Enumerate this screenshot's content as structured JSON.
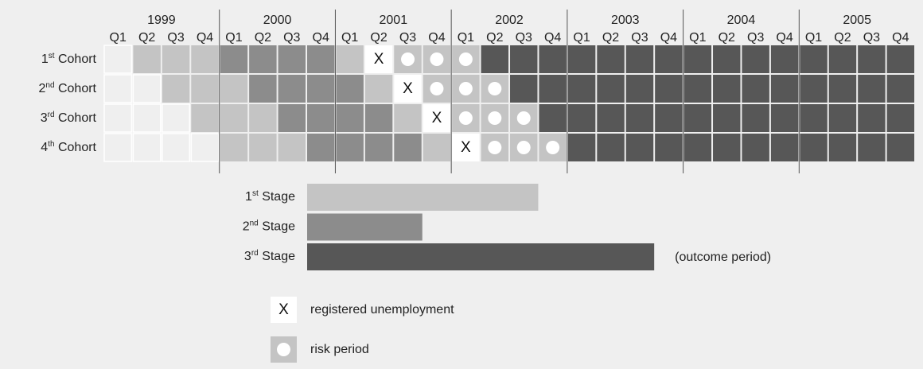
{
  "years": [
    {
      "year": "1999",
      "quarters": [
        "Q1",
        "Q2",
        "Q3",
        "Q4"
      ]
    },
    {
      "year": "2000",
      "quarters": [
        "Q1",
        "Q2",
        "Q3",
        "Q4"
      ]
    },
    {
      "year": "2001",
      "quarters": [
        "Q1",
        "Q2",
        "Q3",
        "Q4"
      ]
    },
    {
      "year": "2002",
      "quarters": [
        "Q1",
        "Q2",
        "Q3",
        "Q4"
      ]
    },
    {
      "year": "2003",
      "quarters": [
        "Q1",
        "Q2",
        "Q3",
        "Q4"
      ]
    },
    {
      "year": "2004",
      "quarters": [
        "Q1",
        "Q2",
        "Q3",
        "Q4"
      ]
    },
    {
      "year": "2005",
      "quarters": [
        "Q1",
        "Q2",
        "Q3",
        "Q4"
      ]
    }
  ],
  "colors": {
    "empty": "#efefef",
    "light": "#c4c4c4",
    "mid": "#8c8c8c",
    "dark": "#575757",
    "x": "#ffffff",
    "risk": "#c4c4c4"
  },
  "cohorts": [
    {
      "number": "1",
      "suffix": "st",
      "label": "Cohort",
      "cells": [
        "empty",
        "light",
        "light",
        "light",
        "mid",
        "mid",
        "mid",
        "mid",
        "light",
        "x",
        "risk",
        "risk",
        "risk",
        "dark",
        "dark",
        "dark",
        "dark",
        "dark",
        "dark",
        "dark",
        "dark",
        "dark",
        "dark",
        "dark",
        "dark",
        "dark",
        "dark",
        "dark"
      ]
    },
    {
      "number": "2",
      "suffix": "nd",
      "label": "Cohort",
      "cells": [
        "empty",
        "empty",
        "light",
        "light",
        "light",
        "mid",
        "mid",
        "mid",
        "mid",
        "light",
        "x",
        "risk",
        "risk",
        "risk",
        "dark",
        "dark",
        "dark",
        "dark",
        "dark",
        "dark",
        "dark",
        "dark",
        "dark",
        "dark",
        "dark",
        "dark",
        "dark",
        "dark"
      ]
    },
    {
      "number": "3",
      "suffix": "rd",
      "label": "Cohort",
      "cells": [
        "empty",
        "empty",
        "empty",
        "light",
        "light",
        "light",
        "mid",
        "mid",
        "mid",
        "mid",
        "light",
        "x",
        "risk",
        "risk",
        "risk",
        "dark",
        "dark",
        "dark",
        "dark",
        "dark",
        "dark",
        "dark",
        "dark",
        "dark",
        "dark",
        "dark",
        "dark",
        "dark"
      ]
    },
    {
      "number": "4",
      "suffix": "th",
      "label": "Cohort",
      "cells": [
        "empty",
        "empty",
        "empty",
        "empty",
        "light",
        "light",
        "light",
        "mid",
        "mid",
        "mid",
        "mid",
        "light",
        "x",
        "risk",
        "risk",
        "risk",
        "dark",
        "dark",
        "dark",
        "dark",
        "dark",
        "dark",
        "dark",
        "dark",
        "dark",
        "dark",
        "dark",
        "dark"
      ]
    }
  ],
  "stages": [
    {
      "number": "1",
      "suffix": "st",
      "label": "Stage",
      "color": "#c4c4c4"
    },
    {
      "number": "2",
      "suffix": "nd",
      "label": "Stage",
      "color": "#8c8c8c"
    },
    {
      "number": "3",
      "suffix": "rd",
      "label": "Stage",
      "color": "#575757",
      "note": "(outcome period)"
    }
  ],
  "legend": [
    {
      "symbol": "X",
      "label": "registered unemployment"
    },
    {
      "label": "risk period"
    }
  ]
}
